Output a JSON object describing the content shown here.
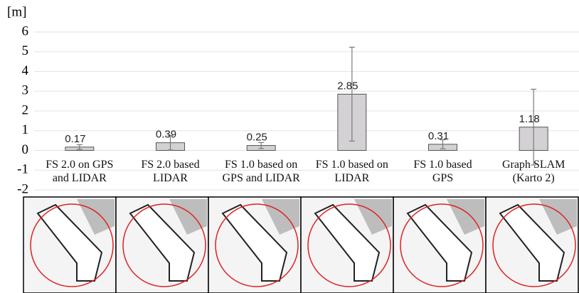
{
  "chart_data": {
    "type": "bar",
    "y_label": "[m]",
    "categories": [
      "FS 2.0 on GPS\nand LIDAR",
      "FS 2.0 based\nLIDAR",
      "FS 1.0 based on\nGPS and LIDAR",
      "FS 1.0 based on\nLIDAR",
      "FS 1.0 based\nGPS",
      "Graph SLAM\n(Karto 2)"
    ],
    "values": [
      0.17,
      0.39,
      0.25,
      2.85,
      0.31,
      1.18
    ],
    "errors": [
      0.12,
      0.37,
      0.15,
      2.38,
      0.23,
      1.92
    ],
    "color": "#d3d1d3",
    "error_color": "#7a7a7a",
    "ylim": [
      -2,
      6
    ],
    "yticks": [
      -2,
      -1,
      0,
      1,
      2,
      3,
      4,
      5,
      6
    ],
    "grid": true
  }
}
